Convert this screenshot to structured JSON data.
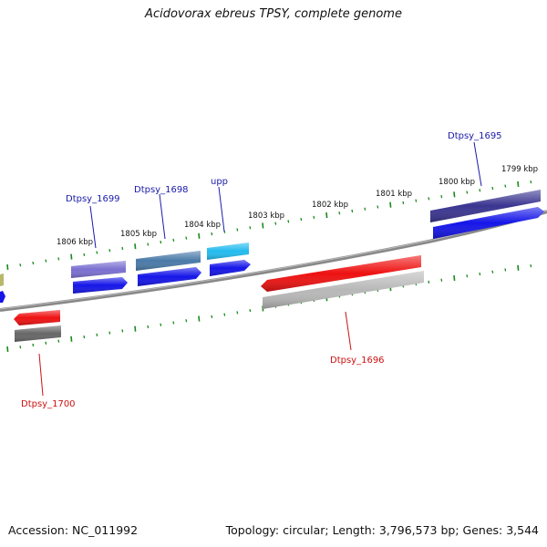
{
  "title": "Acidovorax ebreus TPSY, complete genome",
  "footer": {
    "accession": "Accession: NC_011992",
    "summary": "Topology: circular; Length: 3,796,573 bp; Genes: 3,544"
  },
  "colors": {
    "backbone": "#888888",
    "tick": "#1a8a1a",
    "label_forward": "#1a1aaa",
    "label_reverse": "#cc1111"
  },
  "scale": {
    "ticks": [
      "1806 kbp",
      "1805 kbp",
      "1804 kbp",
      "1803 kbp",
      "1802 kbp",
      "1801 kbp",
      "1800 kbp",
      "1799 kbp"
    ]
  },
  "genes": {
    "forward": [
      {
        "label": "Dtpsy_1699",
        "feature_color": "#7b6fd0",
        "cds_color": "#1515e8"
      },
      {
        "label": "Dtpsy_1698",
        "feature_color": "#4a7aa8",
        "cds_color": "#1515e8"
      },
      {
        "label": "upp",
        "feature_color": "#22bbee",
        "cds_color": "#1515e8"
      },
      {
        "label": "Dtpsy_1695",
        "feature_color": "#3a3590",
        "cds_color": "#1515e8"
      }
    ],
    "reverse": [
      {
        "label": "Dtpsy_1700",
        "feature_color": "#ee1111",
        "cds_color": "#666666"
      },
      {
        "label": "Dtpsy_1696",
        "feature_color": "#ee1111",
        "cds_color": "#b8b8b8"
      }
    ]
  }
}
